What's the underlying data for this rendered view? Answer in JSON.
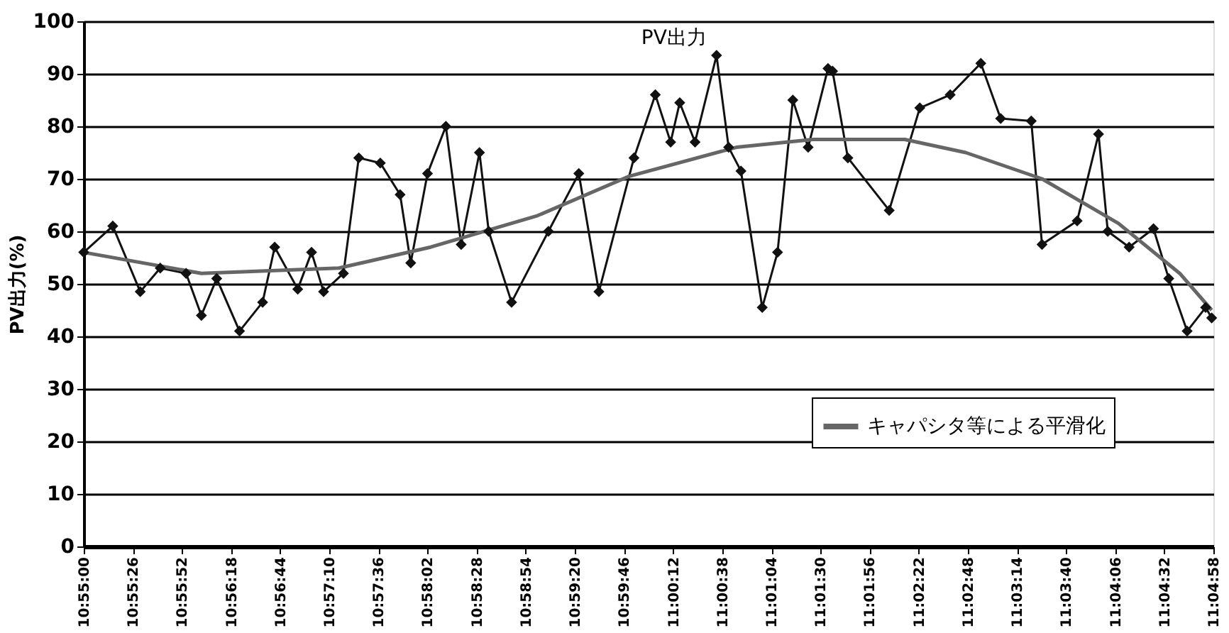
{
  "chart_data": {
    "type": "line",
    "ylabel": "PV出力(%)",
    "xlim": [
      10.91667,
      11.08278
    ],
    "xticks": [
      {
        "value": 10.91667,
        "label": "10:55:00"
      },
      {
        "value": 10.92389,
        "label": "10:55:26"
      },
      {
        "value": 10.93111,
        "label": "10:55:52"
      },
      {
        "value": 10.93833,
        "label": "10:56:18"
      },
      {
        "value": 10.94556,
        "label": "10:56:44"
      },
      {
        "value": 10.95278,
        "label": "10:57:10"
      },
      {
        "value": 10.96,
        "label": "10:57:36"
      },
      {
        "value": 10.96722,
        "label": "10:58:02"
      },
      {
        "value": 10.97444,
        "label": "10:58:28"
      },
      {
        "value": 10.98167,
        "label": "10:58:54"
      },
      {
        "value": 10.98889,
        "label": "10:59:20"
      },
      {
        "value": 10.99611,
        "label": "10:59:46"
      },
      {
        "value": 11.00333,
        "label": "11:00:12"
      },
      {
        "value": 11.01056,
        "label": "11:00:38"
      },
      {
        "value": 11.01778,
        "label": "11:01:04"
      },
      {
        "value": 11.025,
        "label": "11:01:30"
      },
      {
        "value": 11.03222,
        "label": "11:01:56"
      },
      {
        "value": 11.03944,
        "label": "11:02:22"
      },
      {
        "value": 11.04667,
        "label": "11:02:48"
      },
      {
        "value": 11.05389,
        "label": "11:03:14"
      },
      {
        "value": 11.06111,
        "label": "11:03:40"
      },
      {
        "value": 11.06833,
        "label": "11:04:06"
      },
      {
        "value": 11.07556,
        "label": "11:04:32"
      },
      {
        "value": 11.08278,
        "label": "11:04:58"
      }
    ],
    "ylim": [
      0,
      100
    ],
    "yticks": [
      0,
      10,
      20,
      30,
      40,
      50,
      60,
      70,
      80,
      90,
      100
    ],
    "grid": "y",
    "legend": "bottom right",
    "annotations": [
      {
        "text": "PV出力",
        "x": 11.00972,
        "y": 93.5
      }
    ],
    "series": [
      {
        "color": "#111111",
        "marker": "diamond",
        "x": [
          10.91667,
          10.92094,
          10.92498,
          10.92792,
          10.93172,
          10.93397,
          10.93622,
          10.93958,
          10.94297,
          10.94475,
          10.94814,
          10.95017,
          10.95194,
          10.95486,
          10.95711,
          10.96028,
          10.96319,
          10.96475,
          10.96722,
          10.96992,
          10.97217,
          10.97486,
          10.97622,
          10.97958,
          10.985,
          10.98947,
          10.99242,
          10.99758,
          11.00072,
          11.00297,
          11.00431,
          11.00656,
          11.00972,
          11.0115,
          11.01331,
          11.01644,
          11.01869,
          11.02094,
          11.02319,
          11.02611,
          11.02678,
          11.02903,
          11.03511,
          11.03961,
          11.04408,
          11.04858,
          11.0515,
          11.056,
          11.05758,
          11.06275,
          11.06589,
          11.06725,
          11.07039,
          11.07397,
          11.07622,
          11.07892,
          11.08164,
          11.08253
        ],
        "values": [
          56,
          61,
          48.5,
          53,
          52,
          44,
          51,
          41,
          46.5,
          57,
          49,
          56,
          48.5,
          52,
          74,
          73,
          67,
          54,
          71,
          80,
          57.5,
          75,
          60,
          46.5,
          60,
          71,
          48.5,
          74,
          86,
          77,
          84.5,
          77,
          93.5,
          76,
          71.5,
          45.5,
          56,
          85,
          76,
          91,
          90.5,
          74,
          64,
          83.5,
          86,
          92,
          81.5,
          81,
          57.5,
          62,
          78.5,
          60,
          57,
          60.5,
          51,
          41,
          45.5,
          43.5
        ]
      },
      {
        "name": "キャパシタ等による平滑化",
        "color": "#666666",
        "marker": "none",
        "x": [
          10.91667,
          10.93397,
          10.95419,
          10.96769,
          10.98342,
          10.99689,
          11.01264,
          11.02389,
          11.03739,
          11.04636,
          11.05758,
          11.06883,
          11.07783,
          11.08253
        ],
        "values": [
          56,
          52,
          53,
          57,
          63,
          70.5,
          76,
          77.5,
          77.5,
          75,
          70,
          61.5,
          52,
          45
        ]
      }
    ]
  }
}
